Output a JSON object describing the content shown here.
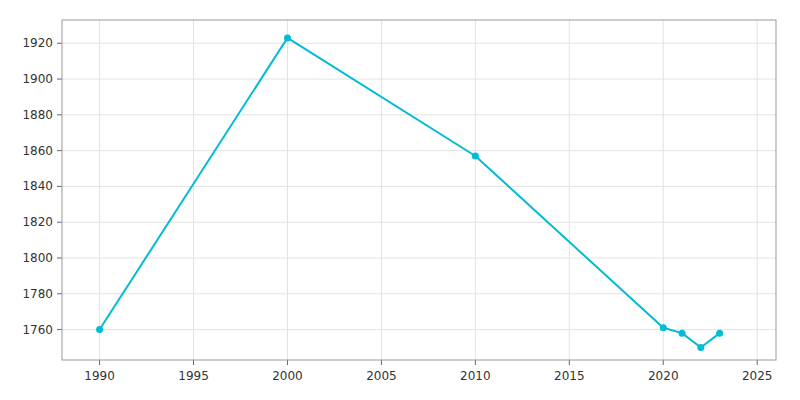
{
  "chart_data": {
    "type": "line",
    "x": [
      1990,
      2000,
      2010,
      2020,
      2021,
      2022,
      2023
    ],
    "values": [
      1760,
      1923,
      1857,
      1761,
      1758,
      1750,
      1758
    ],
    "color": "#00BCD4",
    "marker": "circle",
    "xlim": [
      1988,
      2026
    ],
    "ylim": [
      1743,
      1933
    ],
    "xticks": [
      1990,
      1995,
      2000,
      2005,
      2010,
      2015,
      2020,
      2025
    ],
    "yticks": [
      1760,
      1780,
      1800,
      1820,
      1840,
      1860,
      1880,
      1900,
      1920
    ],
    "grid": true
  }
}
